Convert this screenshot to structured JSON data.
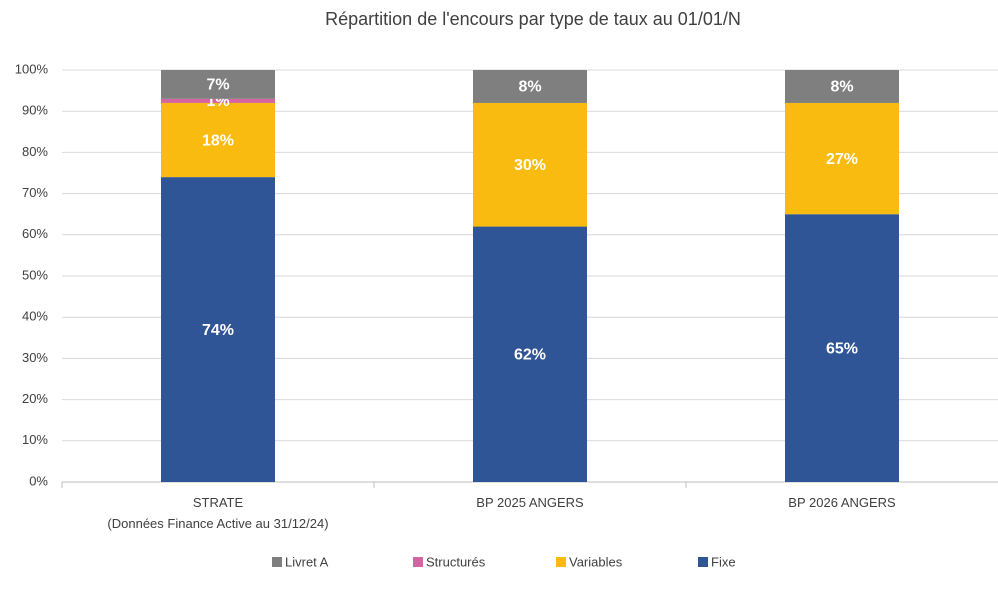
{
  "chart_data": {
    "type": "stacked_bar",
    "title": "Répartition de l'encours par type de taux au 01/01/N",
    "categories": [
      "STRATE\n(Données Finance Active au 31/12/24)",
      "BP 2025 ANGERS",
      "BP 2026 ANGERS"
    ],
    "series": [
      {
        "name": "Livret A",
        "color": "#7f7f7f",
        "values": [
          7,
          8,
          8
        ],
        "value_labels": [
          "7%",
          "8%",
          "8%"
        ]
      },
      {
        "name": "Structurés",
        "color": "#d565a0",
        "values": [
          1,
          0,
          0
        ],
        "value_labels": [
          "1%",
          null,
          null
        ]
      },
      {
        "name": "Variables",
        "color": "#f9bb10",
        "values": [
          18,
          30,
          27
        ],
        "value_labels": [
          "18%",
          "30%",
          "27%"
        ]
      },
      {
        "name": "Fixe",
        "color": "#2f5597",
        "values": [
          74,
          62,
          65
        ],
        "value_labels": [
          "74%",
          "62%",
          "65%"
        ]
      }
    ],
    "ylim": [
      0,
      100
    ],
    "yticks": [
      {
        "value": 0,
        "label": "0%"
      },
      {
        "value": 10,
        "label": "10%"
      },
      {
        "value": 20,
        "label": "20%"
      },
      {
        "value": 30,
        "label": "30%"
      },
      {
        "value": 40,
        "label": "40%"
      },
      {
        "value": 50,
        "label": "50%"
      },
      {
        "value": 60,
        "label": "60%"
      },
      {
        "value": 70,
        "label": "70%"
      },
      {
        "value": 80,
        "label": "80%"
      },
      {
        "value": 90,
        "label": "90%"
      },
      {
        "value": 100,
        "label": "100%"
      }
    ],
    "grid": true
  }
}
